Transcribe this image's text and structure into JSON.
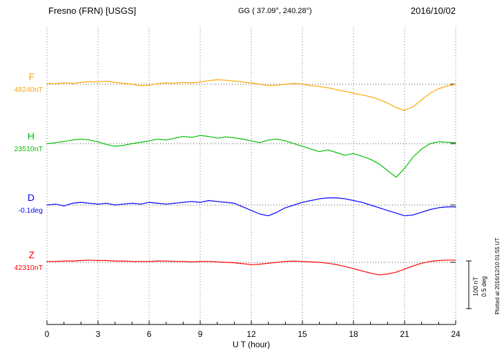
{
  "header": {
    "station": "Fresno (FRN)  [USGS]",
    "coords": "GG ( 37.09°, 240.28°)",
    "date": "2016/10/02"
  },
  "chart_data": {
    "type": "line",
    "title": "Fresno (FRN) [USGS] magnetogram",
    "xlabel": "U T (hour)",
    "xlim": [
      0,
      24
    ],
    "x_ticks": [
      0,
      3,
      6,
      9,
      12,
      15,
      18,
      21,
      24
    ],
    "x_start": 0,
    "x_step": 0.5,
    "grid": true,
    "legend_position": "left",
    "series": [
      {
        "name": "F",
        "baseline_label": "48240nT",
        "baseline_value": 48240,
        "units": "nT",
        "color": "#FFA500",
        "offsets": [
          2,
          1,
          3,
          2,
          4,
          6,
          5,
          7,
          4,
          2,
          0,
          -3,
          -2,
          1,
          3,
          2,
          4,
          3,
          5,
          8,
          10,
          9,
          7,
          5,
          3,
          0,
          -3,
          -2,
          0,
          2,
          0,
          -3,
          -5,
          -8,
          -12,
          -16,
          -20,
          -24,
          -28,
          -34,
          -42,
          -52,
          -58,
          -50,
          -35,
          -20,
          -10,
          -4,
          0
        ]
      },
      {
        "name": "H",
        "baseline_label": "23510nT",
        "baseline_value": 23510,
        "units": "nT",
        "color": "#00C000",
        "offsets": [
          0,
          2,
          5,
          8,
          10,
          8,
          4,
          -2,
          -6,
          -4,
          0,
          3,
          6,
          10,
          8,
          12,
          16,
          14,
          18,
          16,
          12,
          15,
          13,
          10,
          6,
          2,
          8,
          10,
          6,
          0,
          -6,
          -12,
          -18,
          -14,
          -20,
          -26,
          -22,
          -28,
          -35,
          -45,
          -60,
          -75,
          -55,
          -30,
          -12,
          0,
          4,
          3,
          2
        ]
      },
      {
        "name": "D",
        "baseline_label": "-0.1deg",
        "baseline_value": -0.1,
        "units": "deg",
        "color": "#0000FF",
        "offsets": [
          0,
          0.01,
          -0.01,
          0.02,
          0.03,
          0.02,
          0.01,
          0.02,
          0,
          0.01,
          0.02,
          0.01,
          0.03,
          0.02,
          0.01,
          0.02,
          0.03,
          0.04,
          0.03,
          0.05,
          0.04,
          0.03,
          0.02,
          -0.02,
          -0.06,
          -0.1,
          -0.12,
          -0.08,
          -0.03,
          0,
          0.03,
          0.05,
          0.07,
          0.08,
          0.08,
          0.07,
          0.05,
          0.03,
          0,
          -0.03,
          -0.06,
          -0.09,
          -0.12,
          -0.11,
          -0.08,
          -0.05,
          -0.03,
          -0.02,
          -0.02
        ]
      },
      {
        "name": "Z",
        "baseline_label": "42310nT",
        "baseline_value": 42310,
        "units": "nT",
        "color": "#FF0000",
        "offsets": [
          2,
          2,
          3,
          3,
          4,
          5,
          4,
          4,
          3,
          3,
          2,
          2,
          2,
          3,
          3,
          2,
          2,
          1,
          2,
          2,
          1,
          0,
          -1,
          -3,
          -5,
          -4,
          -2,
          0,
          2,
          3,
          2,
          1,
          0,
          -2,
          -5,
          -9,
          -14,
          -19,
          -24,
          -28,
          -26,
          -22,
          -15,
          -8,
          -2,
          2,
          4,
          5,
          5
        ]
      }
    ],
    "scale_bar": {
      "nt_label": "100 nT",
      "deg_label": "0.5 deg",
      "nT": 100,
      "deg": 0.5
    },
    "footnote": "Plotted at 2016/12/10 01:55 UT"
  }
}
